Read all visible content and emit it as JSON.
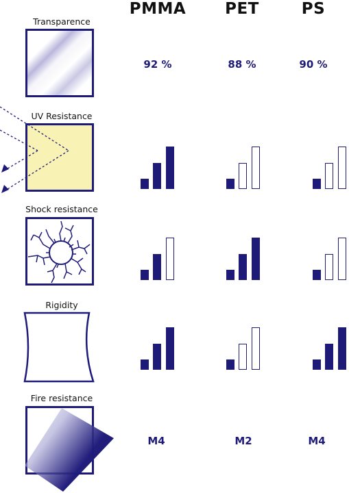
{
  "columns": [
    "PMMA",
    "PET",
    "PS"
  ],
  "properties": [
    {
      "label": "Transparence",
      "icon": "transparency-icon",
      "type": "text",
      "values": [
        "92 %",
        "88 %",
        "90 %"
      ]
    },
    {
      "label": "UV Resistance",
      "icon": "uv-resistance-icon",
      "type": "rating",
      "max": 3,
      "values": [
        3,
        1,
        1
      ]
    },
    {
      "label": "Shock resistance",
      "icon": "shock-resistance-icon",
      "type": "rating",
      "max": 3,
      "values": [
        2,
        3,
        1
      ]
    },
    {
      "label": "Rigidity",
      "icon": "rigidity-icon",
      "type": "rating",
      "max": 3,
      "values": [
        3,
        1,
        3
      ]
    },
    {
      "label": "Fire resistance",
      "icon": "fire-resistance-icon",
      "type": "text",
      "values": [
        "M4",
        "M2",
        "M4"
      ]
    }
  ],
  "colors": {
    "accent": "#1e1a78",
    "uv_fill": "#f8f3b4"
  }
}
